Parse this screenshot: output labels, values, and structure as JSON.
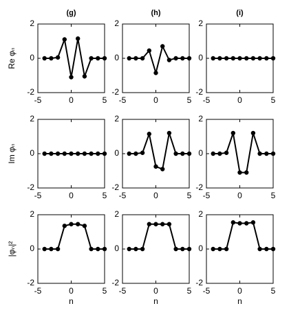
{
  "chart_data": [
    {
      "type": "line",
      "title": "(g)",
      "ylabel": "Re φₙ",
      "x": [
        -4,
        -3,
        -2,
        -1,
        0,
        1,
        2,
        3,
        4,
        5
      ],
      "values": [
        0,
        0,
        0.05,
        1.1,
        -1.1,
        1.15,
        -1.05,
        0,
        0,
        0
      ],
      "color": "#000000",
      "xlim": [
        -5,
        5
      ],
      "xticks": [
        -5,
        0,
        5
      ],
      "ylim": [
        -2,
        2
      ],
      "yticks": [
        -2,
        0,
        2
      ]
    },
    {
      "type": "line",
      "title": "(h)",
      "x": [
        -4,
        -3,
        -2,
        -1,
        0,
        1,
        2,
        3,
        4,
        5
      ],
      "values": [
        0,
        0,
        0,
        0.45,
        -0.85,
        0.7,
        -0.1,
        0,
        0,
        0
      ],
      "color": "#000000",
      "xlim": [
        -5,
        5
      ],
      "xticks": [
        -5,
        0,
        5
      ],
      "ylim": [
        -2,
        2
      ],
      "yticks": [
        -2,
        0,
        2
      ]
    },
    {
      "type": "line",
      "title": "(i)",
      "x": [
        -4,
        -3,
        -2,
        -1,
        0,
        1,
        2,
        3,
        4,
        5
      ],
      "values": [
        0,
        0,
        0,
        0,
        0,
        0,
        0,
        0,
        0,
        0
      ],
      "color": "#000000",
      "xlim": [
        -5,
        5
      ],
      "xticks": [
        -5,
        0,
        5
      ],
      "ylim": [
        -2,
        2
      ],
      "yticks": [
        -2,
        0,
        2
      ]
    },
    {
      "type": "line",
      "ylabel": "Im φₙ",
      "x": [
        -4,
        -3,
        -2,
        -1,
        0,
        1,
        2,
        3,
        4,
        5
      ],
      "values": [
        0,
        0,
        0,
        0,
        0,
        0,
        0,
        0,
        0,
        0
      ],
      "color": "#000000",
      "xlim": [
        -5,
        5
      ],
      "xticks": [
        -5,
        0,
        5
      ],
      "ylim": [
        -2,
        2
      ],
      "yticks": [
        -2,
        0,
        2
      ]
    },
    {
      "type": "line",
      "x": [
        -4,
        -3,
        -2,
        -1,
        0,
        1,
        2,
        3,
        4,
        5
      ],
      "values": [
        0,
        0,
        0.05,
        1.15,
        -0.75,
        -0.9,
        1.2,
        0,
        0,
        0
      ],
      "color": "#000000",
      "xlim": [
        -5,
        5
      ],
      "xticks": [
        -5,
        0,
        5
      ],
      "ylim": [
        -2,
        2
      ],
      "yticks": [
        -2,
        0,
        2
      ]
    },
    {
      "type": "line",
      "x": [
        -4,
        -3,
        -2,
        -1,
        0,
        1,
        2,
        3,
        4,
        5
      ],
      "values": [
        0,
        0,
        0.05,
        1.2,
        -1.1,
        -1.1,
        1.2,
        0,
        0,
        0
      ],
      "color": "#000000",
      "xlim": [
        -5,
        5
      ],
      "xticks": [
        -5,
        0,
        5
      ],
      "ylim": [
        -2,
        2
      ],
      "yticks": [
        -2,
        0,
        2
      ]
    },
    {
      "type": "line",
      "ylabel": "|φₙ|²",
      "xlabel": "n",
      "x": [
        -4,
        -3,
        -2,
        -1,
        0,
        1,
        2,
        3,
        4,
        5
      ],
      "values": [
        0,
        0,
        0,
        1.35,
        1.45,
        1.45,
        1.35,
        0,
        0,
        0
      ],
      "color": "#000000",
      "xlim": [
        -5,
        5
      ],
      "xticks": [
        -5,
        0,
        5
      ],
      "ylim": [
        -2,
        2
      ],
      "yticks": [
        -2,
        0,
        2
      ]
    },
    {
      "type": "line",
      "xlabel": "n",
      "x": [
        -4,
        -3,
        -2,
        -1,
        0,
        1,
        2,
        3,
        4,
        5
      ],
      "values": [
        0,
        0,
        0,
        1.45,
        1.45,
        1.45,
        1.45,
        0,
        0,
        0
      ],
      "color": "#000000",
      "xlim": [
        -5,
        5
      ],
      "xticks": [
        -5,
        0,
        5
      ],
      "ylim": [
        -2,
        2
      ],
      "yticks": [
        -2,
        0,
        2
      ]
    },
    {
      "type": "line",
      "xlabel": "n",
      "x": [
        -4,
        -3,
        -2,
        -1,
        0,
        1,
        2,
        3,
        4,
        5
      ],
      "values": [
        0,
        0,
        0,
        1.55,
        1.5,
        1.5,
        1.55,
        0,
        0,
        0
      ],
      "color": "#000000",
      "xlim": [
        -5,
        5
      ],
      "xticks": [
        -5,
        0,
        5
      ],
      "ylim": [
        -2,
        2
      ],
      "yticks": [
        -2,
        0,
        2
      ]
    }
  ]
}
